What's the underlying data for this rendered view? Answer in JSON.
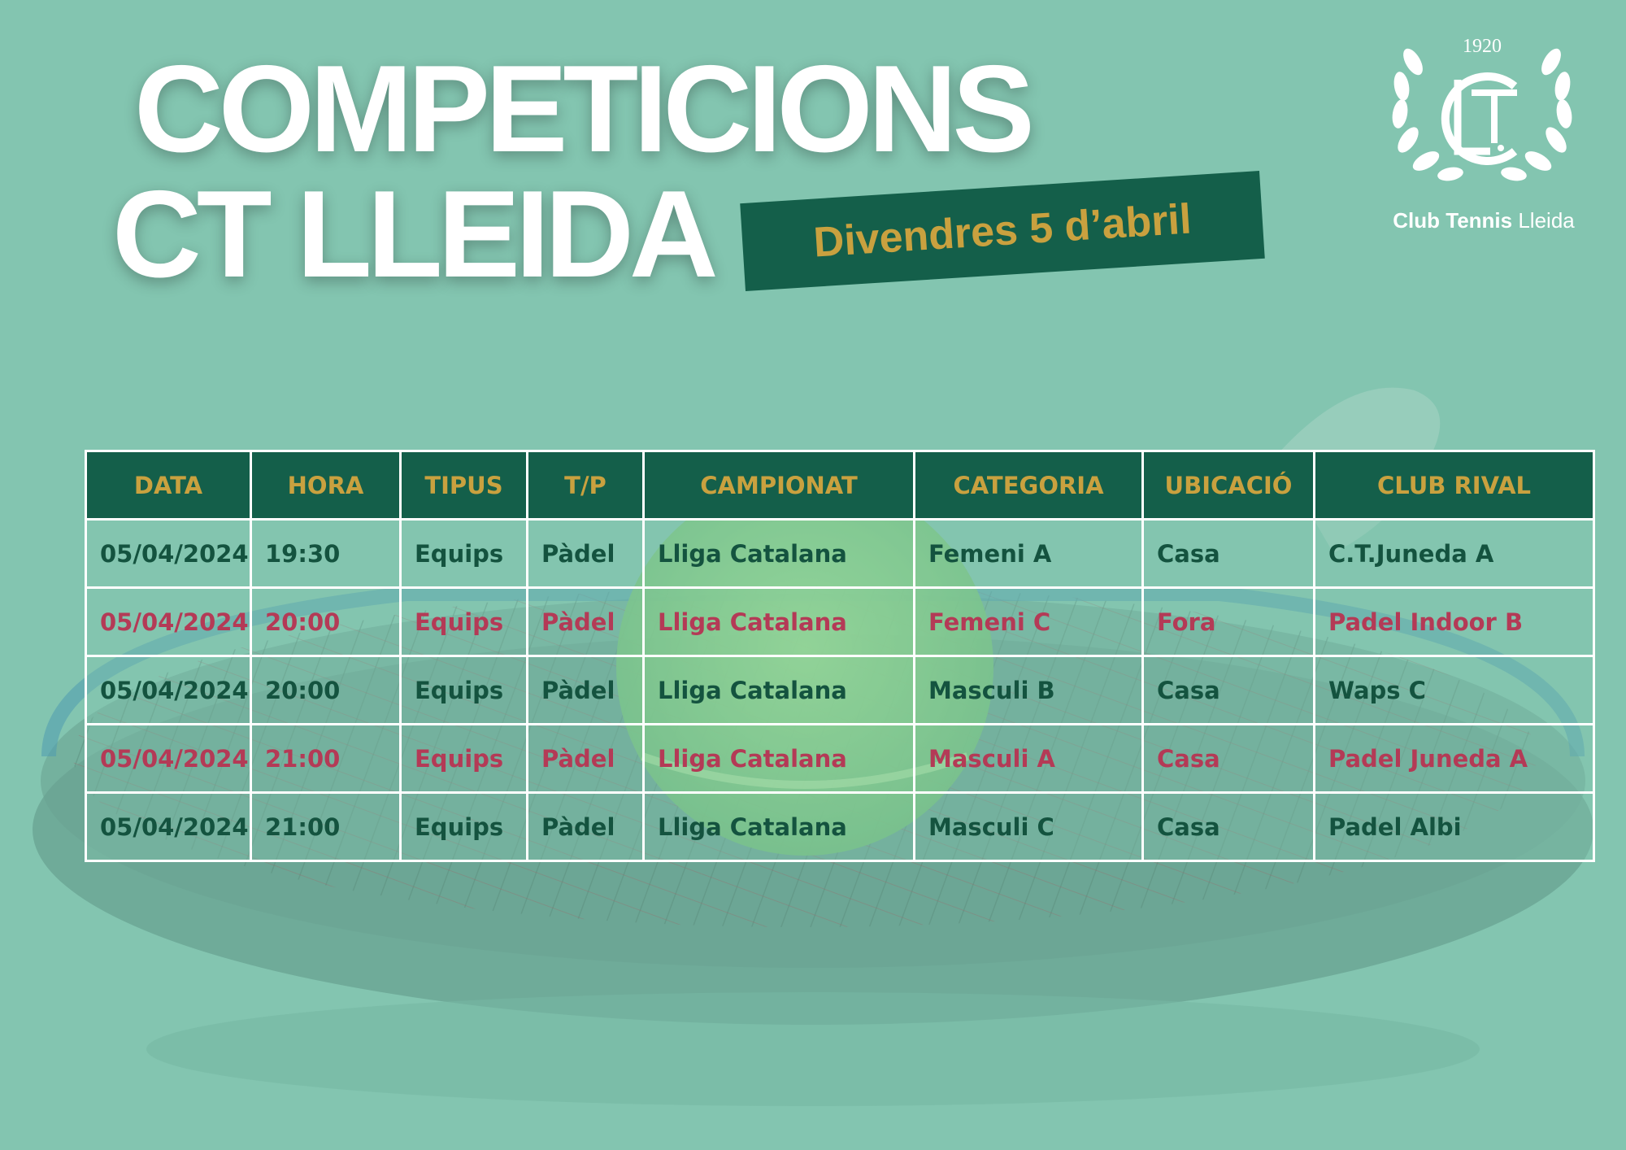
{
  "header": {
    "title_line1": "COMPETICIONS",
    "title_line2": "CT LLEIDA",
    "date_banner": "Divendres 5 d’abril"
  },
  "logo": {
    "year": "1920",
    "club_name_bold": "Club Tennis",
    "club_name_light": "Lleida",
    "icon": "laurel-wreath-crest-icon"
  },
  "colors": {
    "background": "#83c5b0",
    "dark_green": "#145f4a",
    "gold": "#c9a13f",
    "row_green_text": "#14533f",
    "row_red_text": "#b43a56",
    "white": "#ffffff"
  },
  "table": {
    "columns": [
      "DATA",
      "HORA",
      "TIPUS",
      "T/P",
      "CAMPIONAT",
      "CATEGORIA",
      "UBICACIÓ",
      "CLUB RIVAL"
    ],
    "rows": [
      {
        "style": "green",
        "cells": [
          "05/04/2024",
          "19:30",
          "Equips",
          "Pàdel",
          "Lliga Catalana",
          "Femeni A",
          "Casa",
          "C.T.Juneda A"
        ]
      },
      {
        "style": "red",
        "cells": [
          "05/04/2024",
          "20:00",
          "Equips",
          "Pàdel",
          "Lliga Catalana",
          "Femeni C",
          "Fora",
          "Padel Indoor B"
        ]
      },
      {
        "style": "green",
        "cells": [
          "05/04/2024",
          "20:00",
          "Equips",
          "Pàdel",
          "Lliga Catalana",
          "Masculi B",
          "Casa",
          "Waps C"
        ]
      },
      {
        "style": "red",
        "cells": [
          "05/04/2024",
          "21:00",
          "Equips",
          "Pàdel",
          "Lliga Catalana",
          "Masculi A",
          "Casa",
          "Padel Juneda A"
        ]
      },
      {
        "style": "green",
        "cells": [
          "05/04/2024",
          "21:00",
          "Equips",
          "Pàdel",
          "Lliga Catalana",
          "Masculi C",
          "Casa",
          "Padel Albi"
        ]
      }
    ]
  }
}
